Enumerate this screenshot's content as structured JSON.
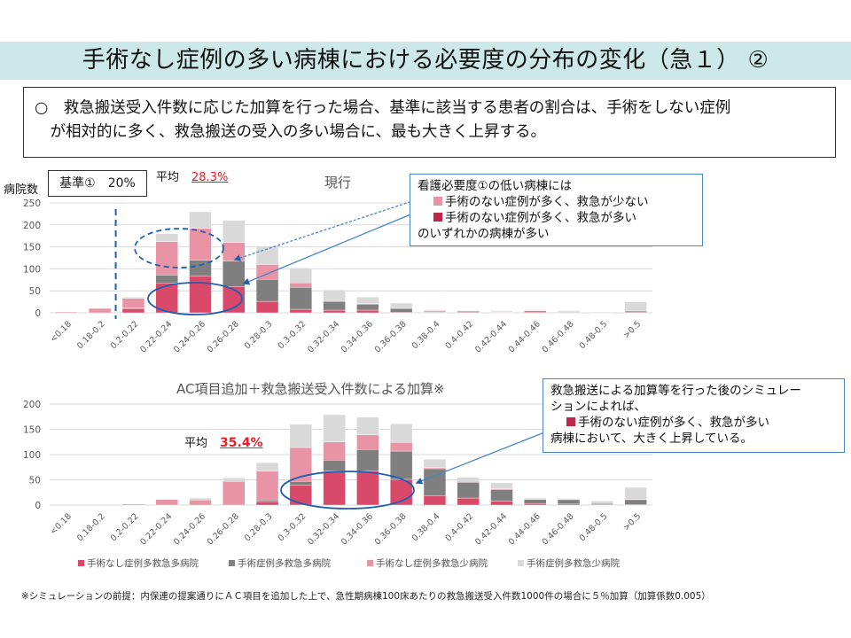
{
  "header": {
    "title": "手術なし症例の多い病棟における必要度の分布の変化（急１） ②"
  },
  "summary": {
    "line1": "○　救急搬送受入件数に応じた加算を行った場合、基準に該当する患者の割合は、手術をしない症例",
    "line2": "　が相対的に多く、救急搬送の受入の多い場合に、最も大きく上昇する。"
  },
  "top_panel": {
    "ylabel": "病院数",
    "kijun_label": "基準①　20%",
    "avg_label": "平均",
    "avg_value": "28.3%",
    "callout": {
      "line1": "看護必要度①の低い病棟には",
      "line2": "手術のない症例が多く、救急が少ない",
      "line3": "手術のない症例が多く、救急が多い",
      "line4": "のいずれかの病棟が多い"
    }
  },
  "bottom_panel": {
    "avg_label": "平均",
    "avg_value": "35.4%",
    "callout": {
      "line1": "救急搬送による加算等を行った後のシミュレー",
      "line2": "ションによれば、",
      "line3": "手術のない症例が多く、救急が多い",
      "line4": "病棟において、大きく上昇している。"
    }
  },
  "legend": [
    {
      "label": "手術なし症例多救急多病院",
      "color": "#d94a6a"
    },
    {
      "label": "手術症例多救急多病院",
      "color": "#7f7f7f"
    },
    {
      "label": "手術なし症例多救急少病院",
      "color": "#e993a6"
    },
    {
      "label": "手術症例多救急少病院",
      "color": "#d9d9d9"
    }
  ],
  "footnote": "※シミュレーションの前提：内保連の提案通りにＡＣ項目を追加した上で、急性期病棟100床あたりの救急搬送受入件数1000件の場合に５％加算（加算係数0.005）",
  "colors": {
    "banner": "#cde8e8",
    "accent_red": "#ee1c24",
    "callout_border": "#4a86c5",
    "annotation_blue": "#1f5fb0",
    "callout_pink_square": "#e993a6",
    "callout_red_square": "#c0264a"
  },
  "chart_data": [
    {
      "type": "bar",
      "stacked": true,
      "title": "現行",
      "xlabel": "",
      "ylabel": "病院数",
      "ylim": [
        0,
        250
      ],
      "yticks": [
        0,
        50,
        100,
        150,
        200,
        250
      ],
      "grid": true,
      "threshold_line": {
        "category": "0.2-0.22",
        "side": "left",
        "label": "基準①　20%"
      },
      "categories": [
        "<0.18",
        "0.18-0.2",
        "0.2-0.22",
        "0.22-0.24",
        "0.24-0.26",
        "0.26-0.28",
        "0.28-0.3",
        "0.3-0.32",
        "0.32-0.34",
        "0.34-0.36",
        "0.36-0.38",
        "0.38-0.4",
        "0.4-0.42",
        "0.42-0.44",
        "0.44-0.46",
        "0.46-0.48",
        "0.48-0.5",
        ">0.5"
      ],
      "series": [
        {
          "name": "手術なし症例多救急多病院",
          "color": "#d94a6a",
          "values": [
            0,
            0,
            10,
            68,
            84,
            60,
            26,
            8,
            6,
            6,
            1,
            1,
            1,
            1,
            2,
            1,
            0,
            1
          ]
        },
        {
          "name": "手術症例多救急多病院",
          "color": "#7f7f7f",
          "values": [
            0,
            0,
            1,
            18,
            36,
            58,
            50,
            50,
            20,
            14,
            9,
            1,
            3,
            1,
            3,
            1,
            0,
            3
          ]
        },
        {
          "name": "手術なし症例多救急少病院",
          "color": "#e993a6",
          "values": [
            2,
            10,
            22,
            76,
            72,
            42,
            34,
            10,
            2,
            1,
            0,
            3,
            0,
            1,
            1,
            2,
            0,
            0
          ]
        },
        {
          "name": "手術症例多救急少病院",
          "color": "#d9d9d9",
          "values": [
            0,
            0,
            3,
            18,
            38,
            50,
            42,
            34,
            24,
            15,
            12,
            2,
            1,
            2,
            1,
            1,
            2,
            21
          ]
        }
      ],
      "annotations": [
        "平均 28.3%"
      ]
    },
    {
      "type": "bar",
      "stacked": true,
      "title": "AC項目追加＋救急搬送受入件数による加算※",
      "xlabel": "",
      "ylabel": "",
      "ylim": [
        0,
        200
      ],
      "yticks": [
        0,
        50,
        100,
        150,
        200
      ],
      "grid": true,
      "categories": [
        "<0.18",
        "0.18-0.2",
        "0.2-0.22",
        "0.22-0.24",
        "0.24-0.26",
        "0.26-0.28",
        "0.28-0.3",
        "0.3-0.32",
        "0.32-0.34",
        "0.34-0.36",
        "0.36-0.38",
        "0.38-0.4",
        "0.4-0.42",
        "0.42-0.44",
        "0.44-0.46",
        "0.46-0.48",
        "0.48-0.5",
        ">0.5"
      ],
      "series": [
        {
          "name": "手術なし症例多救急多病院",
          "color": "#d94a6a",
          "values": [
            0,
            0,
            0,
            0,
            0,
            0,
            7,
            40,
            68,
            67,
            51,
            19,
            14,
            8,
            3,
            2,
            1,
            1
          ]
        },
        {
          "name": "手術症例多救急多病院",
          "color": "#7f7f7f",
          "values": [
            0,
            0,
            0,
            0,
            0,
            0,
            3,
            7,
            21,
            43,
            56,
            53,
            31,
            23,
            8,
            9,
            2,
            10
          ]
        },
        {
          "name": "手術なし症例多救急少病院",
          "color": "#e993a6",
          "values": [
            0,
            0,
            2,
            11,
            10,
            47,
            57,
            67,
            36,
            29,
            17,
            2,
            2,
            1,
            0,
            1,
            0,
            1
          ]
        },
        {
          "name": "手術症例多救急少病院",
          "color": "#d9d9d9",
          "values": [
            0,
            0,
            0,
            0,
            4,
            7,
            17,
            46,
            54,
            35,
            37,
            17,
            8,
            12,
            3,
            1,
            5,
            23
          ]
        }
      ],
      "annotations": [
        "平均 35.4%"
      ]
    }
  ]
}
